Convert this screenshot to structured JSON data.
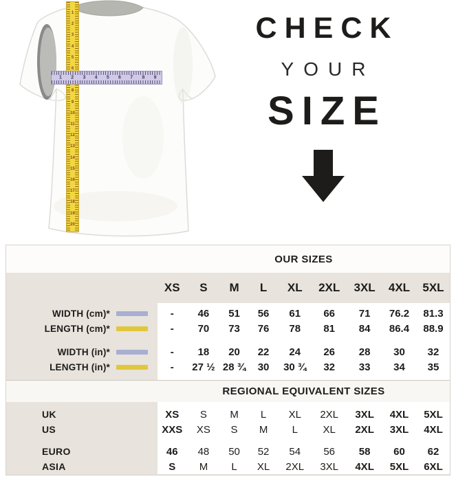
{
  "hero": {
    "title_line1": "CHECK",
    "title_line2": "YOUR",
    "title_line3": "SIZE",
    "arrow_icon": "down-arrow",
    "vertical_tape_numbers": [
      1,
      2,
      3,
      4,
      5,
      6,
      7,
      8,
      9,
      10,
      11,
      12,
      13,
      14,
      15,
      16,
      17,
      18,
      19,
      20
    ],
    "horizontal_tape_numbers": [
      1,
      2,
      3,
      4,
      5,
      6,
      7,
      8,
      9
    ],
    "colors": {
      "vertical_tape": "#f2d840",
      "horizontal_tape": "#d0cae6"
    }
  },
  "size_table": {
    "title": "OUR SIZES",
    "columns": [
      "XS",
      "S",
      "M",
      "L",
      "XL",
      "2XL",
      "3XL",
      "4XL",
      "5XL"
    ],
    "rows": [
      {
        "label": "WIDTH (cm)*",
        "swatch_color": "#a9aed3",
        "values": [
          "-",
          "46",
          "51",
          "56",
          "61",
          "66",
          "71",
          "76.2",
          "81.3"
        ]
      },
      {
        "label": "LENGTH (cm)*",
        "swatch_color": "#e0c73c",
        "values": [
          "-",
          "70",
          "73",
          "76",
          "78",
          "81",
          "84",
          "86.4",
          "88.9"
        ]
      },
      {
        "label": "WIDTH (in)*",
        "swatch_color": "#a9aed3",
        "values": [
          "-",
          "18",
          "20",
          "22",
          "24",
          "26",
          "28",
          "30",
          "32"
        ]
      },
      {
        "label": "LENGTH (in)*",
        "swatch_color": "#e0c73c",
        "values": [
          "-",
          "27 ½",
          "28 ¾",
          "30",
          "30 ¾",
          "32",
          "33",
          "34",
          "35"
        ]
      }
    ]
  },
  "regional_table": {
    "title": "REGIONAL EQUIVALENT SIZES",
    "rows": [
      {
        "label": "UK",
        "values": [
          "XS",
          "S",
          "M",
          "L",
          "XL",
          "2XL",
          "3XL",
          "4XL",
          "5XL"
        ]
      },
      {
        "label": "US",
        "values": [
          "XXS",
          "XS",
          "S",
          "M",
          "L",
          "XL",
          "2XL",
          "3XL",
          "4XL"
        ]
      },
      {
        "label": "EURO",
        "values": [
          "46",
          "48",
          "50",
          "52",
          "54",
          "56",
          "58",
          "60",
          "62"
        ]
      },
      {
        "label": "ASIA",
        "values": [
          "S",
          "M",
          "L",
          "XL",
          "2XL",
          "3XL",
          "4XL",
          "5XL",
          "6XL"
        ]
      }
    ]
  },
  "colors": {
    "table_beige": "#e8e3dc",
    "band_white": "#fdfcfa",
    "text": "#1d1c1b"
  }
}
